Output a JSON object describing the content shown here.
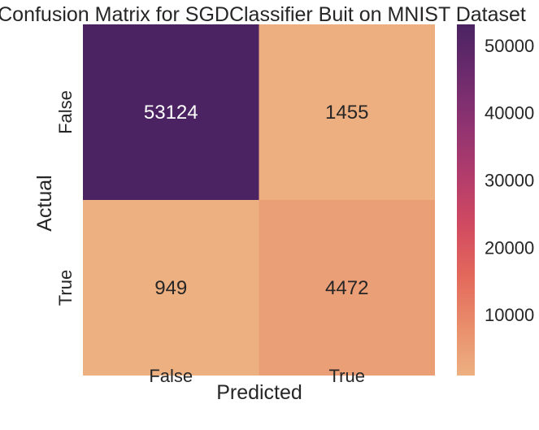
{
  "chart_data": {
    "type": "heatmap",
    "title": "Confusion Matrix for SGDClassifier Buit on MNIST Dataset",
    "xlabel": "Predicted",
    "ylabel": "Actual",
    "x_categories": [
      "False",
      "True"
    ],
    "y_categories": [
      "False",
      "True"
    ],
    "values": [
      [
        53124,
        1455
      ],
      [
        949,
        4472
      ]
    ],
    "cell_labels": [
      [
        "53124",
        "1455"
      ],
      [
        "949",
        "4472"
      ]
    ],
    "colorbar": {
      "range": [
        949,
        53124
      ],
      "ticks": [
        10000,
        20000,
        30000,
        40000,
        50000
      ],
      "tick_labels": [
        "10000",
        "20000",
        "30000",
        "40000",
        "50000"
      ]
    },
    "colormap": {
      "name": "flare",
      "stops": [
        "#edb081",
        "#e98d6b",
        "#e3685c",
        "#d14a61",
        "#b13c6c",
        "#8f3371",
        "#6c2b6d",
        "#4b2362"
      ]
    },
    "grid": false
  }
}
